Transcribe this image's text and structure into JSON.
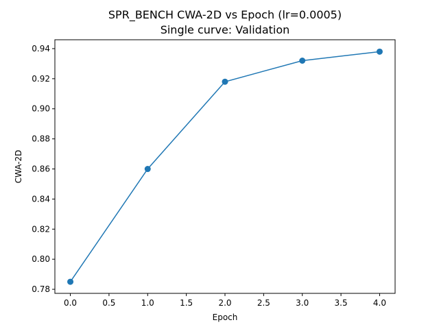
{
  "chart_data": {
    "type": "line",
    "title": "SPR_BENCH CWA-2D vs Epoch (lr=0.0005)",
    "subtitle": "Single curve: Validation",
    "xlabel": "Epoch",
    "ylabel": "CWA-2D",
    "xlim": [
      -0.2,
      4.2
    ],
    "ylim": [
      0.7773,
      0.9459
    ],
    "x_ticks": [
      0.0,
      0.5,
      1.0,
      1.5,
      2.0,
      2.5,
      3.0,
      3.5,
      4.0
    ],
    "x_tick_labels": [
      "0.0",
      "0.5",
      "1.0",
      "1.5",
      "2.0",
      "2.5",
      "3.0",
      "3.5",
      "4.0"
    ],
    "y_ticks": [
      0.78,
      0.8,
      0.82,
      0.84,
      0.86,
      0.88,
      0.9,
      0.92,
      0.94
    ],
    "y_tick_labels": [
      "0.78",
      "0.80",
      "0.82",
      "0.84",
      "0.86",
      "0.88",
      "0.90",
      "0.92",
      "0.94"
    ],
    "grid": false,
    "series": [
      {
        "x": [
          0,
          1,
          2,
          3,
          4
        ],
        "values": [
          0.785,
          0.86,
          0.918,
          0.932,
          0.938
        ],
        "color": "#1f77b4",
        "marker": "circle"
      }
    ]
  }
}
